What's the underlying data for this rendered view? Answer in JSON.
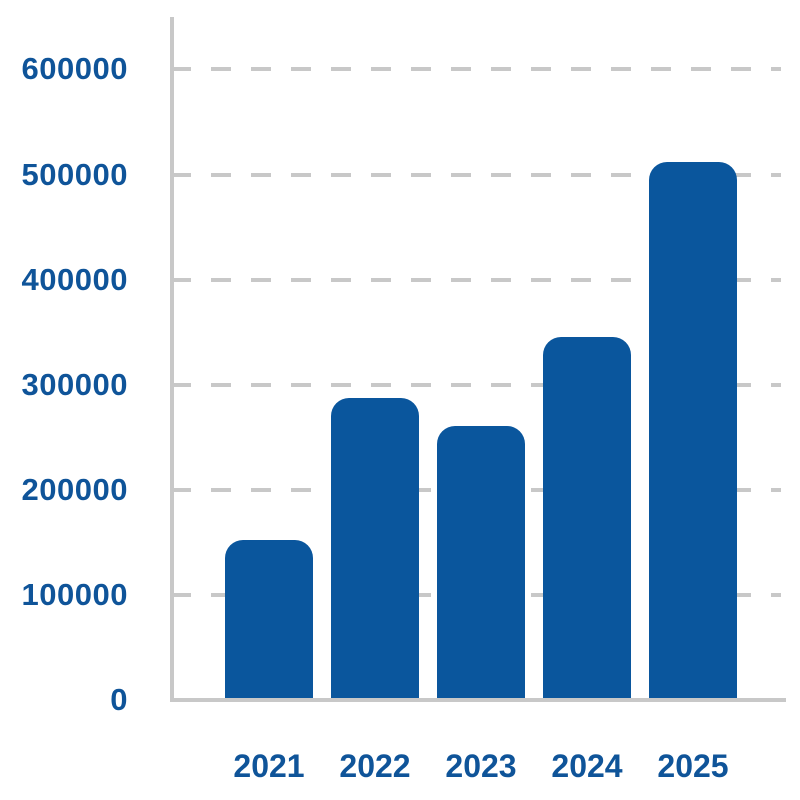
{
  "chart_data": {
    "type": "bar",
    "title": "",
    "xlabel": "",
    "ylabel": "",
    "categories": [
      "2021",
      "2022",
      "2023",
      "2024",
      "2025"
    ],
    "values": [
      152000,
      287000,
      261000,
      345000,
      512000
    ],
    "ylim": [
      0,
      600000
    ],
    "ytick_step": 100000,
    "ytick_labels": [
      "0",
      "100000",
      "200000",
      "300000",
      "400000",
      "500000",
      "600000"
    ],
    "grid": "horizontal-dashed",
    "legend": "none",
    "colors": {
      "bar_fill": "#0a569d",
      "tick_label_text": "#0f5499",
      "axis_line": "#c8c8c8",
      "gridline": "#c8c8c8",
      "background": "#ffffff"
    }
  }
}
